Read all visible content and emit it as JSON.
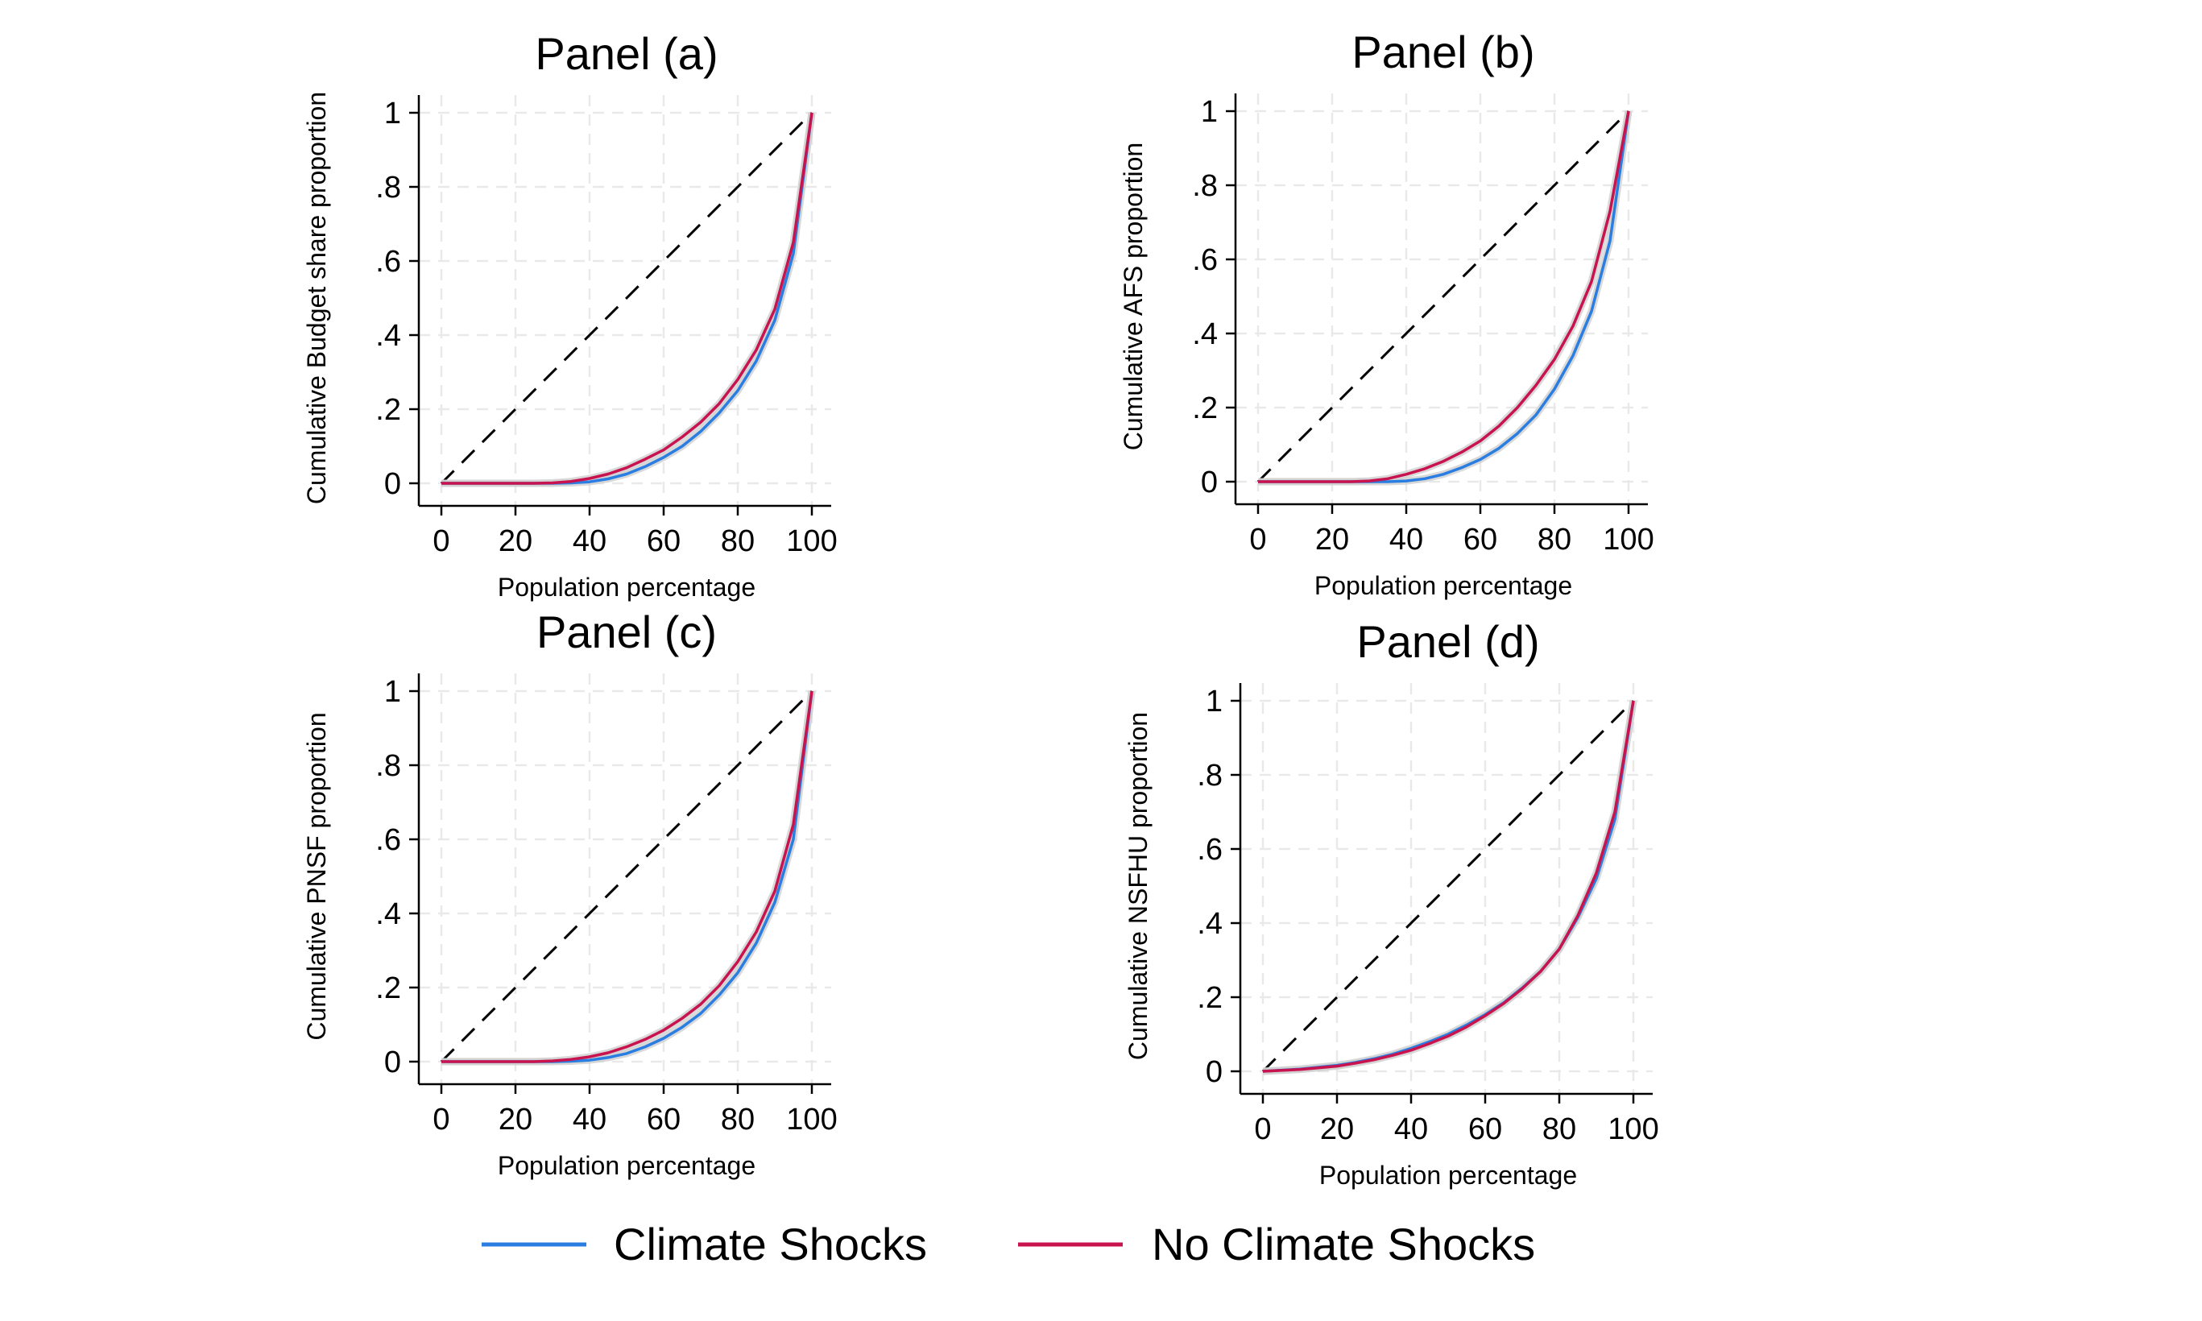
{
  "legend": {
    "placement": "bottom",
    "items": [
      {
        "label": "Climate Shocks",
        "color": "#2a7de1"
      },
      {
        "label": "No Climate Shocks",
        "color": "#c8134f"
      }
    ]
  },
  "chart_data": [
    {
      "type": "line",
      "title": "Panel (a)",
      "xlabel": "Population percentage",
      "ylabel": "Cumulative Budget share proportion",
      "xlim": [
        0,
        100
      ],
      "ylim": [
        0,
        1
      ],
      "xticks": [
        "0",
        "20",
        "40",
        "60",
        "80",
        "100"
      ],
      "yticks": [
        "0",
        ".2",
        ".4",
        ".6",
        ".8",
        "1"
      ],
      "grid": true,
      "x": [
        0,
        10,
        20,
        25,
        30,
        35,
        40,
        45,
        50,
        55,
        60,
        65,
        70,
        75,
        80,
        85,
        90,
        95,
        100
      ],
      "series": [
        {
          "name": "Climate Shocks",
          "color": "#2a7de1",
          "values": [
            0,
            0,
            0,
            0,
            0,
            0.001,
            0.004,
            0.012,
            0.025,
            0.045,
            0.07,
            0.1,
            0.14,
            0.19,
            0.25,
            0.33,
            0.44,
            0.62,
            1.0
          ]
        },
        {
          "name": "No Climate Shocks",
          "color": "#c8134f",
          "values": [
            0,
            0,
            0,
            0,
            0.001,
            0.005,
            0.013,
            0.025,
            0.042,
            0.065,
            0.09,
            0.125,
            0.165,
            0.215,
            0.28,
            0.36,
            0.47,
            0.65,
            1.0
          ]
        }
      ]
    },
    {
      "type": "line",
      "title": "Panel (b)",
      "xlabel": "Population percentage",
      "ylabel": "Cumulative AFS proportion",
      "xlim": [
        0,
        100
      ],
      "ylim": [
        0,
        1
      ],
      "xticks": [
        "0",
        "20",
        "40",
        "60",
        "80",
        "100"
      ],
      "yticks": [
        "0",
        ".2",
        ".4",
        ".6",
        ".8",
        "1"
      ],
      "grid": true,
      "x": [
        0,
        10,
        20,
        25,
        30,
        35,
        40,
        45,
        50,
        55,
        60,
        65,
        70,
        75,
        80,
        85,
        90,
        95,
        100
      ],
      "series": [
        {
          "name": "Climate Shocks",
          "color": "#2a7de1",
          "values": [
            0,
            0,
            0,
            0,
            0,
            0,
            0.002,
            0.008,
            0.02,
            0.038,
            0.06,
            0.09,
            0.13,
            0.18,
            0.25,
            0.34,
            0.46,
            0.65,
            1.0
          ]
        },
        {
          "name": "No Climate Shocks",
          "color": "#c8134f",
          "values": [
            0,
            0,
            0,
            0,
            0.002,
            0.008,
            0.02,
            0.035,
            0.055,
            0.08,
            0.11,
            0.15,
            0.2,
            0.26,
            0.33,
            0.42,
            0.54,
            0.73,
            1.0
          ]
        }
      ]
    },
    {
      "type": "line",
      "title": "Panel (c)",
      "xlabel": "Population percentage",
      "ylabel": "Cumulative PNSF proportion",
      "xlim": [
        0,
        100
      ],
      "ylim": [
        0,
        1
      ],
      "xticks": [
        "0",
        "20",
        "40",
        "60",
        "80",
        "100"
      ],
      "yticks": [
        "0",
        ".2",
        ".4",
        ".6",
        ".8",
        "1"
      ],
      "grid": true,
      "x": [
        0,
        10,
        20,
        25,
        30,
        35,
        40,
        45,
        50,
        55,
        60,
        65,
        70,
        75,
        80,
        85,
        90,
        95,
        100
      ],
      "series": [
        {
          "name": "Climate Shocks",
          "color": "#2a7de1",
          "values": [
            0,
            0,
            0,
            0,
            0,
            0.001,
            0.004,
            0.011,
            0.022,
            0.04,
            0.063,
            0.093,
            0.13,
            0.18,
            0.24,
            0.32,
            0.43,
            0.6,
            1.0
          ]
        },
        {
          "name": "No Climate Shocks",
          "color": "#c8134f",
          "values": [
            0,
            0,
            0,
            0,
            0.002,
            0.006,
            0.013,
            0.024,
            0.04,
            0.06,
            0.085,
            0.117,
            0.155,
            0.205,
            0.27,
            0.35,
            0.46,
            0.64,
            1.0
          ]
        }
      ]
    },
    {
      "type": "line",
      "title": "Panel (d)",
      "xlabel": "Population percentage",
      "ylabel": "Cumulative NSFHU proportion",
      "xlim": [
        0,
        100
      ],
      "ylim": [
        0,
        1
      ],
      "xticks": [
        "0",
        "20",
        "40",
        "60",
        "80",
        "100"
      ],
      "yticks": [
        "0",
        ".2",
        ".4",
        ".6",
        ".8",
        "1"
      ],
      "grid": true,
      "x": [
        0,
        10,
        20,
        25,
        30,
        35,
        40,
        45,
        50,
        55,
        60,
        65,
        70,
        75,
        80,
        85,
        90,
        95,
        100
      ],
      "series": [
        {
          "name": "Climate Shocks",
          "color": "#2a7de1",
          "values": [
            0,
            0.006,
            0.016,
            0.024,
            0.034,
            0.046,
            0.062,
            0.08,
            0.1,
            0.125,
            0.153,
            0.185,
            0.225,
            0.27,
            0.33,
            0.415,
            0.52,
            0.68,
            1.0
          ]
        },
        {
          "name": "No Climate Shocks",
          "color": "#c8134f",
          "values": [
            0,
            0.005,
            0.014,
            0.022,
            0.031,
            0.043,
            0.057,
            0.075,
            0.095,
            0.12,
            0.15,
            0.183,
            0.223,
            0.27,
            0.33,
            0.42,
            0.535,
            0.7,
            1.0
          ]
        }
      ]
    }
  ]
}
